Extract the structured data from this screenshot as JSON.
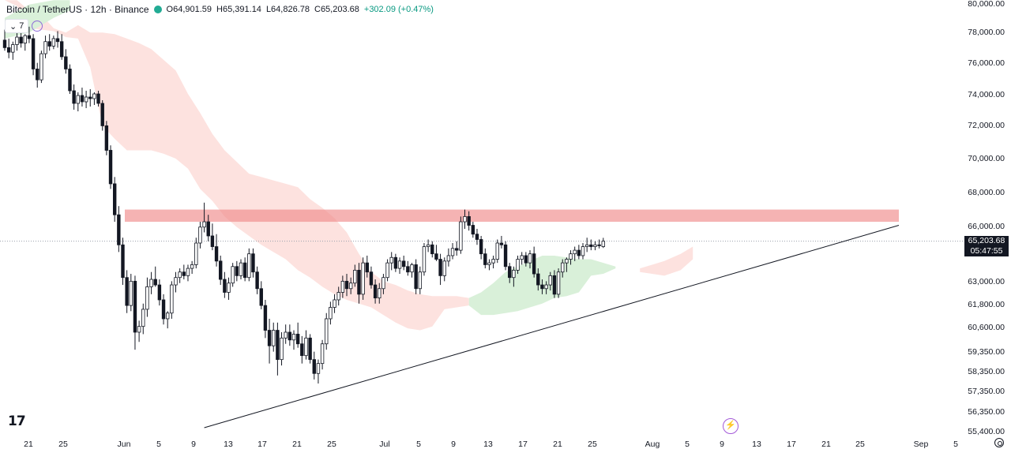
{
  "header": {
    "symbol": "Bitcoin / TetherUS · 12h · Binance",
    "open": "O64,901.59",
    "high": "H65,391.14",
    "low": "L64,826.78",
    "close": "C65,203.68",
    "change": "+302.09 (+0.47%)",
    "status_color": "#22ab94"
  },
  "indicator_toggle": {
    "count": "7"
  },
  "logo_text": "17",
  "price_axis": {
    "ticks": [
      "80,000.00",
      "78,000.00",
      "76,000.00",
      "74,000.00",
      "72,000.00",
      "70,000.00",
      "68,000.00",
      "66,000.00",
      "63,000.00",
      "61,800.00",
      "60,600.00",
      "59,350.00",
      "58,350.00",
      "57,350.00",
      "56,350.00",
      "55,400.00"
    ],
    "last_price": "65,203.68",
    "countdown": "05:47:55"
  },
  "time_axis": {
    "ticks": [
      "21",
      "25",
      "Jun",
      "5",
      "9",
      "13",
      "17",
      "21",
      "25",
      "Jul",
      "5",
      "9",
      "13",
      "17",
      "21",
      "25",
      "Aug",
      "5",
      "9",
      "13",
      "17",
      "21",
      "25",
      "Sep",
      "5"
    ]
  },
  "colors": {
    "up": "#131722",
    "down": "#131722",
    "resistance_zone": "#f08a8a",
    "cloud_bear": "#fde2df",
    "cloud_bull": "#d9f0d9",
    "trendline": "#131722"
  },
  "chart_data": {
    "type": "candlestick",
    "title": "Bitcoin / TetherUS · 12h · Binance",
    "scale": "logarithmic",
    "ylim": [
      55400,
      80000
    ],
    "resistance_zone": [
      66300,
      67000
    ],
    "candles": [
      {
        "o": 77500,
        "h": 78200,
        "l": 76800,
        "c": 77000
      },
      {
        "o": 77000,
        "h": 77600,
        "l": 76300,
        "c": 76700
      },
      {
        "o": 76700,
        "h": 77400,
        "l": 76200,
        "c": 77200
      },
      {
        "o": 77200,
        "h": 78100,
        "l": 76800,
        "c": 77700
      },
      {
        "o": 77700,
        "h": 78300,
        "l": 77000,
        "c": 77300
      },
      {
        "o": 77300,
        "h": 77900,
        "l": 76800,
        "c": 77800
      },
      {
        "o": 77800,
        "h": 78400,
        "l": 77300,
        "c": 77600
      },
      {
        "o": 77600,
        "h": 77900,
        "l": 75200,
        "c": 75600
      },
      {
        "o": 75600,
        "h": 76000,
        "l": 74400,
        "c": 74900
      },
      {
        "o": 74900,
        "h": 76800,
        "l": 74700,
        "c": 76600
      },
      {
        "o": 76600,
        "h": 77800,
        "l": 76300,
        "c": 77400
      },
      {
        "o": 77400,
        "h": 77900,
        "l": 76800,
        "c": 77100
      },
      {
        "o": 77100,
        "h": 77800,
        "l": 76900,
        "c": 77600
      },
      {
        "o": 77600,
        "h": 78100,
        "l": 77000,
        "c": 77400
      },
      {
        "o": 77400,
        "h": 77900,
        "l": 76200,
        "c": 76400
      },
      {
        "o": 76400,
        "h": 76900,
        "l": 75300,
        "c": 75600
      },
      {
        "o": 75600,
        "h": 75900,
        "l": 74000,
        "c": 74200
      },
      {
        "o": 74200,
        "h": 74600,
        "l": 73000,
        "c": 73400
      },
      {
        "o": 73400,
        "h": 74100,
        "l": 72900,
        "c": 73900
      },
      {
        "o": 73900,
        "h": 74400,
        "l": 73200,
        "c": 73500
      },
      {
        "o": 73500,
        "h": 74200,
        "l": 73100,
        "c": 73800
      },
      {
        "o": 73800,
        "h": 74300,
        "l": 73200,
        "c": 73700
      },
      {
        "o": 73700,
        "h": 74100,
        "l": 73300,
        "c": 74000
      },
      {
        "o": 74000,
        "h": 74200,
        "l": 73200,
        "c": 73400
      },
      {
        "o": 73400,
        "h": 73600,
        "l": 71700,
        "c": 72000
      },
      {
        "o": 72000,
        "h": 72300,
        "l": 70200,
        "c": 70500
      },
      {
        "o": 70500,
        "h": 70800,
        "l": 68200,
        "c": 68500
      },
      {
        "o": 68500,
        "h": 68900,
        "l": 66300,
        "c": 66700
      },
      {
        "o": 66700,
        "h": 67200,
        "l": 64600,
        "c": 65000
      },
      {
        "o": 65000,
        "h": 65400,
        "l": 62800,
        "c": 63200
      },
      {
        "o": 63200,
        "h": 63600,
        "l": 61300,
        "c": 61700
      },
      {
        "o": 61700,
        "h": 63400,
        "l": 61400,
        "c": 63000
      },
      {
        "o": 63000,
        "h": 63300,
        "l": 59400,
        "c": 60300
      },
      {
        "o": 60300,
        "h": 60900,
        "l": 59800,
        "c": 60600
      },
      {
        "o": 60600,
        "h": 61800,
        "l": 60200,
        "c": 61500
      },
      {
        "o": 61500,
        "h": 63200,
        "l": 61100,
        "c": 62700
      },
      {
        "o": 62700,
        "h": 63500,
        "l": 62300,
        "c": 63100
      },
      {
        "o": 63100,
        "h": 63800,
        "l": 62700,
        "c": 62800
      },
      {
        "o": 62800,
        "h": 63100,
        "l": 61700,
        "c": 62000
      },
      {
        "o": 62000,
        "h": 62300,
        "l": 60700,
        "c": 61000
      },
      {
        "o": 61000,
        "h": 61400,
        "l": 60500,
        "c": 61300
      },
      {
        "o": 61300,
        "h": 63000,
        "l": 61000,
        "c": 62800
      },
      {
        "o": 62800,
        "h": 63500,
        "l": 62400,
        "c": 63200
      },
      {
        "o": 63200,
        "h": 63700,
        "l": 62900,
        "c": 63500
      },
      {
        "o": 63500,
        "h": 63900,
        "l": 63100,
        "c": 63300
      },
      {
        "o": 63300,
        "h": 63900,
        "l": 63000,
        "c": 63700
      },
      {
        "o": 63700,
        "h": 64100,
        "l": 63400,
        "c": 63900
      },
      {
        "o": 63900,
        "h": 65400,
        "l": 63700,
        "c": 65100
      },
      {
        "o": 65100,
        "h": 66300,
        "l": 64800,
        "c": 66000
      },
      {
        "o": 66000,
        "h": 67400,
        "l": 65700,
        "c": 66300
      },
      {
        "o": 66300,
        "h": 66700,
        "l": 65200,
        "c": 65500
      },
      {
        "o": 65500,
        "h": 66200,
        "l": 64700,
        "c": 64900
      },
      {
        "o": 64900,
        "h": 65600,
        "l": 63800,
        "c": 64100
      },
      {
        "o": 64100,
        "h": 64400,
        "l": 62800,
        "c": 63100
      },
      {
        "o": 63100,
        "h": 63500,
        "l": 62100,
        "c": 62400
      },
      {
        "o": 62400,
        "h": 63200,
        "l": 62000,
        "c": 62900
      },
      {
        "o": 62900,
        "h": 64000,
        "l": 62700,
        "c": 63800
      },
      {
        "o": 63800,
        "h": 64100,
        "l": 63000,
        "c": 63300
      },
      {
        "o": 63300,
        "h": 64200,
        "l": 63100,
        "c": 64000
      },
      {
        "o": 64000,
        "h": 64300,
        "l": 63000,
        "c": 63200
      },
      {
        "o": 63200,
        "h": 64800,
        "l": 63000,
        "c": 64500
      },
      {
        "o": 64500,
        "h": 64800,
        "l": 63200,
        "c": 63500
      },
      {
        "o": 63500,
        "h": 63800,
        "l": 62300,
        "c": 62600
      },
      {
        "o": 62600,
        "h": 63000,
        "l": 61500,
        "c": 61700
      },
      {
        "o": 61700,
        "h": 62000,
        "l": 60000,
        "c": 60400
      },
      {
        "o": 60400,
        "h": 61000,
        "l": 58700,
        "c": 59600
      },
      {
        "o": 59600,
        "h": 60800,
        "l": 59300,
        "c": 60400
      },
      {
        "o": 60400,
        "h": 60800,
        "l": 58100,
        "c": 58900
      },
      {
        "o": 58900,
        "h": 60300,
        "l": 58600,
        "c": 60000
      },
      {
        "o": 60000,
        "h": 60700,
        "l": 59700,
        "c": 60300
      },
      {
        "o": 60300,
        "h": 60700,
        "l": 59600,
        "c": 59900
      },
      {
        "o": 59900,
        "h": 60400,
        "l": 59400,
        "c": 60200
      },
      {
        "o": 60200,
        "h": 60800,
        "l": 59500,
        "c": 59700
      },
      {
        "o": 59700,
        "h": 60100,
        "l": 58700,
        "c": 59100
      },
      {
        "o": 59100,
        "h": 60400,
        "l": 58900,
        "c": 60000
      },
      {
        "o": 60000,
        "h": 60200,
        "l": 58700,
        "c": 58900
      },
      {
        "o": 58900,
        "h": 59300,
        "l": 57900,
        "c": 58200
      },
      {
        "o": 58200,
        "h": 58900,
        "l": 57700,
        "c": 58700
      },
      {
        "o": 58700,
        "h": 59900,
        "l": 58400,
        "c": 59700
      },
      {
        "o": 59700,
        "h": 61300,
        "l": 59400,
        "c": 61000
      },
      {
        "o": 61000,
        "h": 61900,
        "l": 60700,
        "c": 61600
      },
      {
        "o": 61600,
        "h": 62300,
        "l": 61300,
        "c": 62000
      },
      {
        "o": 62000,
        "h": 62700,
        "l": 61700,
        "c": 62400
      },
      {
        "o": 62400,
        "h": 63300,
        "l": 62100,
        "c": 63000
      },
      {
        "o": 63000,
        "h": 63400,
        "l": 62200,
        "c": 62600
      },
      {
        "o": 62600,
        "h": 63200,
        "l": 62300,
        "c": 62900
      },
      {
        "o": 62900,
        "h": 63900,
        "l": 62700,
        "c": 63600
      },
      {
        "o": 63600,
        "h": 64000,
        "l": 61800,
        "c": 62300
      },
      {
        "o": 62300,
        "h": 64300,
        "l": 62000,
        "c": 64000
      },
      {
        "o": 64000,
        "h": 64400,
        "l": 63200,
        "c": 63500
      },
      {
        "o": 63500,
        "h": 63800,
        "l": 62600,
        "c": 62800
      },
      {
        "o": 62800,
        "h": 63100,
        "l": 61800,
        "c": 62100
      },
      {
        "o": 62100,
        "h": 62900,
        "l": 61800,
        "c": 62600
      },
      {
        "o": 62600,
        "h": 63400,
        "l": 62300,
        "c": 63200
      },
      {
        "o": 63200,
        "h": 64200,
        "l": 63000,
        "c": 64000
      },
      {
        "o": 64000,
        "h": 64600,
        "l": 63600,
        "c": 64300
      },
      {
        "o": 64300,
        "h": 64500,
        "l": 63500,
        "c": 63700
      },
      {
        "o": 63700,
        "h": 64300,
        "l": 63400,
        "c": 64100
      },
      {
        "o": 64100,
        "h": 64400,
        "l": 63600,
        "c": 63800
      },
      {
        "o": 63800,
        "h": 64100,
        "l": 63300,
        "c": 63500
      },
      {
        "o": 63500,
        "h": 64000,
        "l": 63200,
        "c": 63900
      },
      {
        "o": 63900,
        "h": 64200,
        "l": 62300,
        "c": 62600
      },
      {
        "o": 62600,
        "h": 63800,
        "l": 62300,
        "c": 63500
      },
      {
        "o": 63500,
        "h": 65100,
        "l": 63300,
        "c": 64900
      },
      {
        "o": 64900,
        "h": 65300,
        "l": 64600,
        "c": 65000
      },
      {
        "o": 65000,
        "h": 65200,
        "l": 64300,
        "c": 64500
      },
      {
        "o": 64500,
        "h": 65000,
        "l": 64100,
        "c": 64200
      },
      {
        "o": 64200,
        "h": 64500,
        "l": 62800,
        "c": 63300
      },
      {
        "o": 63300,
        "h": 64300,
        "l": 63000,
        "c": 64100
      },
      {
        "o": 64100,
        "h": 64800,
        "l": 63800,
        "c": 64400
      },
      {
        "o": 64400,
        "h": 65100,
        "l": 64200,
        "c": 64800
      },
      {
        "o": 64800,
        "h": 65200,
        "l": 64400,
        "c": 64700
      },
      {
        "o": 64700,
        "h": 66600,
        "l": 64500,
        "c": 66300
      },
      {
        "o": 66300,
        "h": 67000,
        "l": 65900,
        "c": 66600
      },
      {
        "o": 66600,
        "h": 66900,
        "l": 65800,
        "c": 66100
      },
      {
        "o": 66100,
        "h": 66300,
        "l": 65400,
        "c": 65600
      },
      {
        "o": 65600,
        "h": 65900,
        "l": 65000,
        "c": 65300
      },
      {
        "o": 65300,
        "h": 65500,
        "l": 64200,
        "c": 64500
      },
      {
        "o": 64500,
        "h": 64800,
        "l": 63700,
        "c": 63900
      },
      {
        "o": 63900,
        "h": 64200,
        "l": 63600,
        "c": 64000
      },
      {
        "o": 64000,
        "h": 64400,
        "l": 63700,
        "c": 64200
      },
      {
        "o": 64200,
        "h": 65300,
        "l": 64000,
        "c": 65100
      },
      {
        "o": 65100,
        "h": 65500,
        "l": 64800,
        "c": 65000
      },
      {
        "o": 65000,
        "h": 65200,
        "l": 63600,
        "c": 63800
      },
      {
        "o": 63800,
        "h": 64000,
        "l": 62900,
        "c": 63200
      },
      {
        "o": 63200,
        "h": 63800,
        "l": 62700,
        "c": 63600
      },
      {
        "o": 63600,
        "h": 64400,
        "l": 63400,
        "c": 64200
      },
      {
        "o": 64200,
        "h": 64600,
        "l": 63900,
        "c": 64400
      },
      {
        "o": 64400,
        "h": 64600,
        "l": 63800,
        "c": 64000
      },
      {
        "o": 64000,
        "h": 64700,
        "l": 63700,
        "c": 64500
      },
      {
        "o": 64500,
        "h": 64900,
        "l": 63200,
        "c": 63400
      },
      {
        "o": 63400,
        "h": 63700,
        "l": 62500,
        "c": 62800
      },
      {
        "o": 62800,
        "h": 63100,
        "l": 62300,
        "c": 62600
      },
      {
        "o": 62600,
        "h": 63000,
        "l": 62300,
        "c": 62800
      },
      {
        "o": 62800,
        "h": 63500,
        "l": 62500,
        "c": 63300
      },
      {
        "o": 63300,
        "h": 63600,
        "l": 62100,
        "c": 62300
      },
      {
        "o": 62300,
        "h": 63700,
        "l": 62100,
        "c": 63500
      },
      {
        "o": 63500,
        "h": 64200,
        "l": 63200,
        "c": 64000
      },
      {
        "o": 64000,
        "h": 64300,
        "l": 63500,
        "c": 64200
      },
      {
        "o": 64200,
        "h": 64700,
        "l": 63900,
        "c": 64500
      },
      {
        "o": 64500,
        "h": 64900,
        "l": 64100,
        "c": 64700
      },
      {
        "o": 64700,
        "h": 65000,
        "l": 64200,
        "c": 64400
      },
      {
        "o": 64400,
        "h": 65100,
        "l": 64200,
        "c": 64900
      },
      {
        "o": 64900,
        "h": 65400,
        "l": 64600,
        "c": 65000
      },
      {
        "o": 65000,
        "h": 65300,
        "l": 64700,
        "c": 64900
      },
      {
        "o": 64900,
        "h": 65200,
        "l": 64700,
        "c": 65000
      },
      {
        "o": 65000,
        "h": 65300,
        "l": 64800,
        "c": 64950
      },
      {
        "o": 64901.59,
        "h": 65391.14,
        "l": 64826.78,
        "c": 65203.68
      }
    ],
    "cloud": {
      "bear": [
        [
          0,
          80200,
          80200
        ],
        [
          3,
          80200,
          79800
        ],
        [
          6,
          79500,
          78300
        ],
        [
          9,
          79200,
          78200
        ],
        [
          12,
          78300,
          78100
        ],
        [
          15,
          78000,
          77700
        ],
        [
          18,
          78500,
          77600
        ],
        [
          21,
          78000,
          75700
        ],
        [
          24,
          78000,
          72000
        ],
        [
          27,
          77900,
          71200
        ],
        [
          30,
          77600,
          70500
        ],
        [
          33,
          77300,
          70500
        ],
        [
          36,
          76900,
          70500
        ],
        [
          39,
          76200,
          70300
        ],
        [
          42,
          75500,
          70000
        ],
        [
          45,
          74000,
          69400
        ],
        [
          48,
          72800,
          68200
        ],
        [
          51,
          71500,
          67500
        ],
        [
          54,
          70500,
          66600
        ],
        [
          57,
          69800,
          66000
        ],
        [
          60,
          69100,
          65500
        ],
        [
          63,
          68900,
          65000
        ],
        [
          66,
          68700,
          64600
        ],
        [
          69,
          68500,
          64200
        ],
        [
          72,
          68300,
          63600
        ],
        [
          75,
          67600,
          63200
        ],
        [
          78,
          67100,
          62700
        ],
        [
          81,
          66500,
          62300
        ],
        [
          84,
          65700,
          62000
        ],
        [
          87,
          64500,
          61800
        ],
        [
          90,
          63500,
          61600
        ],
        [
          93,
          63000,
          61200
        ],
        [
          96,
          62800,
          60800
        ],
        [
          99,
          62500,
          60500
        ],
        [
          102,
          62300,
          60400
        ],
        [
          105,
          62200,
          60600
        ],
        [
          108,
          62200,
          61500
        ],
        [
          111,
          62200,
          61600
        ],
        [
          114,
          62100,
          61700
        ]
      ],
      "bull": [
        [
          114,
          62100,
          61700
        ],
        [
          117,
          62400,
          61200
        ],
        [
          120,
          62900,
          61200
        ],
        [
          123,
          63500,
          61300
        ],
        [
          126,
          63800,
          61400
        ],
        [
          129,
          64100,
          61600
        ],
        [
          132,
          64400,
          61800
        ],
        [
          135,
          64400,
          62100
        ],
        [
          138,
          64300,
          62200
        ],
        [
          141,
          64200,
          62400
        ],
        [
          144,
          64200,
          63300
        ],
        [
          147,
          64000,
          63400
        ],
        [
          150,
          63800,
          63700
        ]
      ],
      "bear_future": [
        [
          156,
          63700,
          63500
        ],
        [
          159,
          63900,
          63400
        ],
        [
          162,
          64100,
          63300
        ],
        [
          166,
          64500,
          63600
        ],
        [
          169,
          64900,
          64200
        ]
      ]
    },
    "trendline": [
      {
        "bar": 49,
        "price": 55400
      },
      {
        "bar": 182,
        "price": 66100
      }
    ]
  }
}
